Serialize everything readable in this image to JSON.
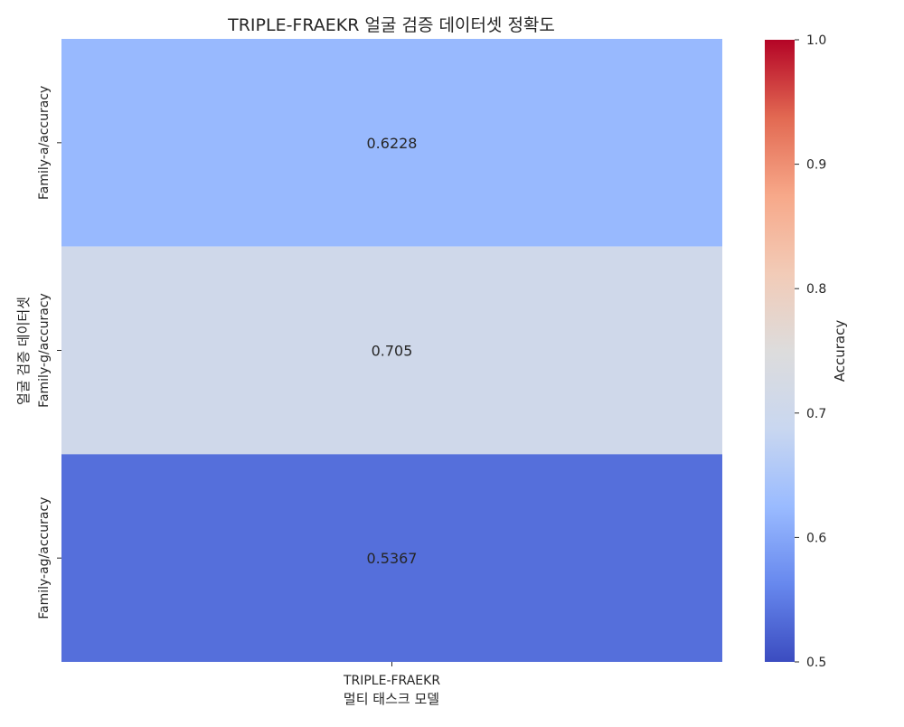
{
  "chart_data": {
    "type": "heatmap",
    "title": "TRIPLE-FRAEKR 얼굴 검증 데이터셋 정확도",
    "xlabel": "멀티 태스크 모델",
    "ylabel": "얼굴 검증 데이터셋",
    "x_categories": [
      "TRIPLE-FRAEKR"
    ],
    "y_categories": [
      "Family-a/accuracy",
      "Family-g/accuracy",
      "Family-ag/accuracy"
    ],
    "values": [
      [
        0.6228
      ],
      [
        0.705
      ],
      [
        0.5367
      ]
    ],
    "value_labels": [
      "0.6228",
      "0.705",
      "0.5367"
    ],
    "colorbar": {
      "label": "Accuracy",
      "range": [
        0.5,
        1.0
      ],
      "ticks": [
        "0.5",
        "0.6",
        "0.7",
        "0.8",
        "0.9",
        "1.0"
      ],
      "colormap": "coolwarm",
      "color_stops": [
        "#3b4cc0",
        "#6788ee",
        "#9abbff",
        "#c9d7f0",
        "#dddcdc",
        "#f2cbb7",
        "#f7a889",
        "#e26952",
        "#b40426"
      ]
    }
  }
}
